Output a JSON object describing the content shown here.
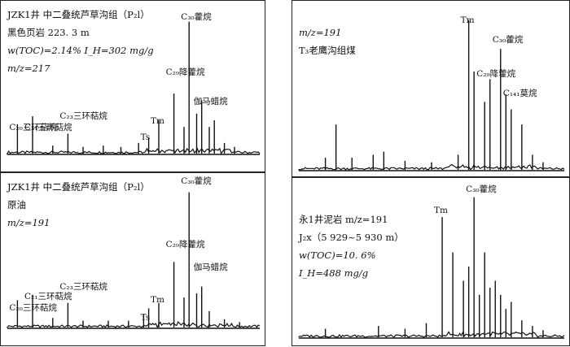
{
  "chart_data": [
    {
      "type": "mass-chromatogram",
      "header": [
        "JZK1井 中二叠统芦草沟组（P₂l）",
        "黑色页岩 223. 3 m",
        "w(TOC)=2.14%  I_H=302 mg/g",
        "m/z=217"
      ],
      "peaks": [
        {
          "x": 0.04,
          "y": 0.22
        },
        {
          "x": 0.1,
          "y": 0.28
        },
        {
          "x": 0.18,
          "y": 0.06
        },
        {
          "x": 0.24,
          "y": 0.15
        },
        {
          "x": 0.3,
          "y": 0.05
        },
        {
          "x": 0.38,
          "y": 0.06
        },
        {
          "x": 0.45,
          "y": 0.05
        },
        {
          "x": 0.52,
          "y": 0.08
        },
        {
          "x": 0.56,
          "y": 0.12
        },
        {
          "x": 0.6,
          "y": 0.25
        },
        {
          "x": 0.66,
          "y": 0.45
        },
        {
          "x": 0.7,
          "y": 0.2
        },
        {
          "x": 0.72,
          "y": 0.99
        },
        {
          "x": 0.75,
          "y": 0.3
        },
        {
          "x": 0.77,
          "y": 0.4
        },
        {
          "x": 0.8,
          "y": 0.2
        },
        {
          "x": 0.82,
          "y": 0.25
        },
        {
          "x": 0.86,
          "y": 0.08
        },
        {
          "x": 0.9,
          "y": 0.05
        }
      ],
      "labels": [
        {
          "text": "C₂₀三环萜烷",
          "x": 0.04
        },
        {
          "text": "C₂₁三环萜烷",
          "x": 0.1
        },
        {
          "text": "C₂₃三环萜烷",
          "x": 0.24
        },
        {
          "text": "Ts",
          "x": 0.56
        },
        {
          "text": "Tm",
          "x": 0.6
        },
        {
          "text": "C₂₉降藿烷",
          "x": 0.66
        },
        {
          "text": "C₃₀藿烷",
          "x": 0.72
        },
        {
          "text": "伽马蜡烷",
          "x": 0.77
        }
      ]
    },
    {
      "type": "mass-chromatogram",
      "header": [
        "JZK1井 中二叠统芦草沟组（P₂l）",
        "原油",
        "m/z=191"
      ],
      "peaks": [
        {
          "x": 0.04,
          "y": 0.2
        },
        {
          "x": 0.1,
          "y": 0.24
        },
        {
          "x": 0.18,
          "y": 0.07
        },
        {
          "x": 0.24,
          "y": 0.18
        },
        {
          "x": 0.3,
          "y": 0.05
        },
        {
          "x": 0.4,
          "y": 0.05
        },
        {
          "x": 0.48,
          "y": 0.05
        },
        {
          "x": 0.54,
          "y": 0.1
        },
        {
          "x": 0.56,
          "y": 0.14
        },
        {
          "x": 0.6,
          "y": 0.18
        },
        {
          "x": 0.66,
          "y": 0.48
        },
        {
          "x": 0.7,
          "y": 0.22
        },
        {
          "x": 0.72,
          "y": 0.99
        },
        {
          "x": 0.75,
          "y": 0.25
        },
        {
          "x": 0.77,
          "y": 0.3
        },
        {
          "x": 0.8,
          "y": 0.12
        },
        {
          "x": 0.86,
          "y": 0.06
        },
        {
          "x": 0.92,
          "y": 0.04
        }
      ],
      "labels": [
        {
          "text": "C₂₀三环萜烷",
          "x": 0.04
        },
        {
          "text": "C₂₁三环萜烷",
          "x": 0.1
        },
        {
          "text": "C₂₃三环萜烷",
          "x": 0.24
        },
        {
          "text": "Ts",
          "x": 0.56
        },
        {
          "text": "Tm",
          "x": 0.6
        },
        {
          "text": "C₂₉降藿烷",
          "x": 0.66
        },
        {
          "text": "C₃₀藿烷",
          "x": 0.72
        },
        {
          "text": "伽马蜡烷",
          "x": 0.77
        }
      ]
    },
    {
      "type": "mass-chromatogram",
      "header": [
        "m/z=191",
        "T₃老鹰沟组煤"
      ],
      "peaks": [
        {
          "x": 0.1,
          "y": 0.08
        },
        {
          "x": 0.14,
          "y": 0.3
        },
        {
          "x": 0.2,
          "y": 0.08
        },
        {
          "x": 0.28,
          "y": 0.1
        },
        {
          "x": 0.32,
          "y": 0.12
        },
        {
          "x": 0.4,
          "y": 0.06
        },
        {
          "x": 0.5,
          "y": 0.05
        },
        {
          "x": 0.6,
          "y": 0.1
        },
        {
          "x": 0.64,
          "y": 0.99
        },
        {
          "x": 0.66,
          "y": 0.65
        },
        {
          "x": 0.7,
          "y": 0.45
        },
        {
          "x": 0.72,
          "y": 0.6
        },
        {
          "x": 0.76,
          "y": 0.8
        },
        {
          "x": 0.78,
          "y": 0.5
        },
        {
          "x": 0.8,
          "y": 0.4
        },
        {
          "x": 0.84,
          "y": 0.3
        },
        {
          "x": 0.88,
          "y": 0.1
        },
        {
          "x": 0.92,
          "y": 0.05
        }
      ],
      "labels": [
        {
          "text": "Tm",
          "x": 0.64
        },
        {
          "text": "C₂₉降藿烷",
          "x": 0.7
        },
        {
          "text": "C₃₀藿烷",
          "x": 0.76
        },
        {
          "text": "C₁₄₁莫烷",
          "x": 0.8
        }
      ]
    },
    {
      "type": "mass-chromatogram",
      "header": [
        "永1井泥岩  m/z=191",
        "J₂x（5 929~5 930 m）",
        "w(TOC)=10. 6%",
        "I_H=488 mg/g"
      ],
      "peaks": [
        {
          "x": 0.1,
          "y": 0.06
        },
        {
          "x": 0.3,
          "y": 0.08
        },
        {
          "x": 0.4,
          "y": 0.06
        },
        {
          "x": 0.48,
          "y": 0.1
        },
        {
          "x": 0.54,
          "y": 0.85
        },
        {
          "x": 0.58,
          "y": 0.6
        },
        {
          "x": 0.62,
          "y": 0.4
        },
        {
          "x": 0.64,
          "y": 0.5
        },
        {
          "x": 0.66,
          "y": 0.99
        },
        {
          "x": 0.68,
          "y": 0.3
        },
        {
          "x": 0.7,
          "y": 0.6
        },
        {
          "x": 0.72,
          "y": 0.35
        },
        {
          "x": 0.74,
          "y": 0.4
        },
        {
          "x": 0.76,
          "y": 0.3
        },
        {
          "x": 0.78,
          "y": 0.2
        },
        {
          "x": 0.8,
          "y": 0.25
        },
        {
          "x": 0.84,
          "y": 0.12
        },
        {
          "x": 0.88,
          "y": 0.08
        },
        {
          "x": 0.92,
          "y": 0.05
        }
      ],
      "labels": [
        {
          "text": "Tm",
          "x": 0.54
        },
        {
          "text": "C₃₀藿烷",
          "x": 0.66
        }
      ]
    }
  ]
}
